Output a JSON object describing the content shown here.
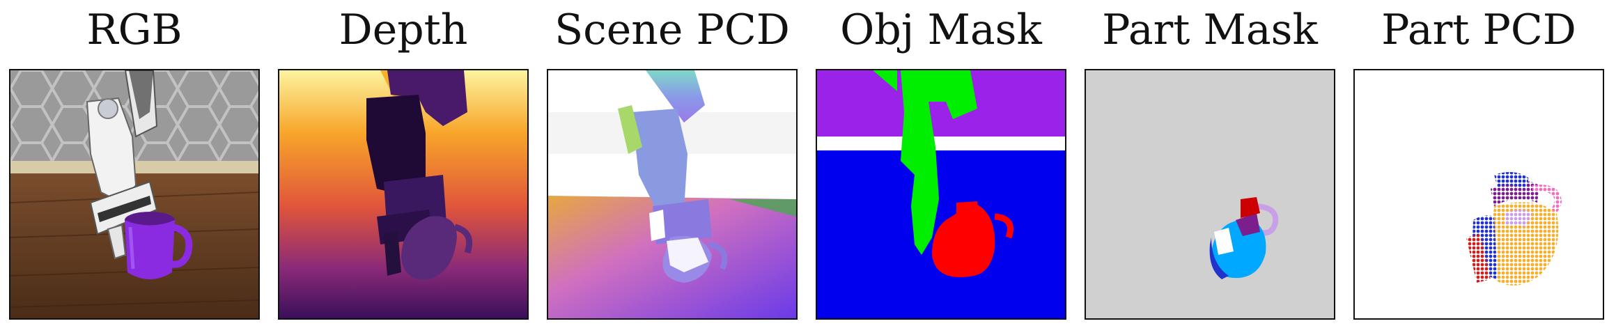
{
  "panels": [
    {
      "title": "RGB"
    },
    {
      "title": "Depth"
    },
    {
      "title": "Scene PCD"
    },
    {
      "title": "Obj Mask"
    },
    {
      "title": "Part Mask"
    },
    {
      "title": "Part PCD"
    }
  ],
  "colors": {
    "background": "#ffffff",
    "frame_border": "#111111",
    "mask_gripper": "#00ee00",
    "mask_object": "#ff0000",
    "mask_table": "#0000ee",
    "mask_wall": "#9b22e8",
    "part_background": "#d0d0d0",
    "part_colors": [
      "#00a8ff",
      "#cc0000",
      "#7b1f8c",
      "#2233cc",
      "#c8a0e8",
      "#f5b030",
      "#f070c0"
    ]
  }
}
